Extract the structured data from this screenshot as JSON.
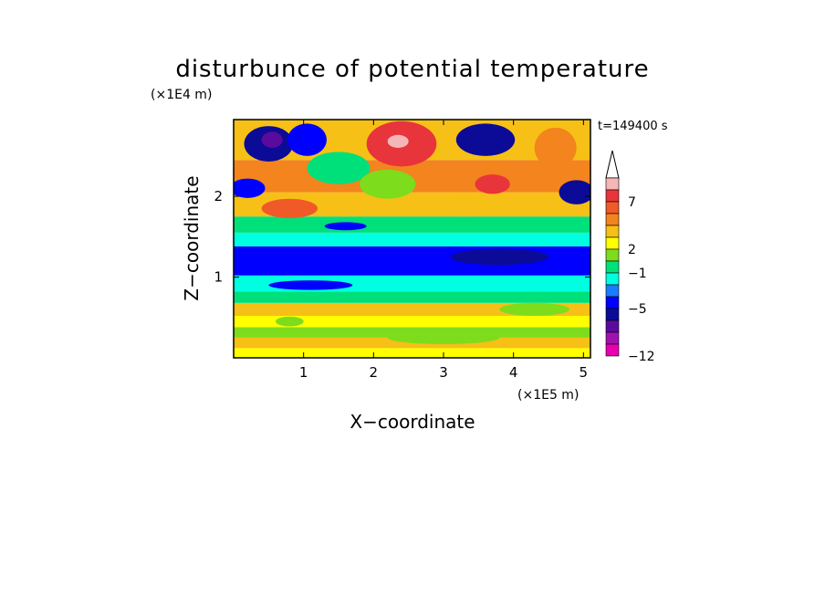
{
  "chart_data": {
    "type": "heatmap",
    "title": "disturbunce of potential temperature",
    "time_label": "t=149400 s",
    "xlabel": "X−coordinate",
    "ylabel": "Z−coordinate",
    "x_unit": "(×1E5 m)",
    "y_unit": "(×1E4 m)",
    "xlim": [
      0,
      5.1
    ],
    "ylim": [
      0,
      2.95
    ],
    "x_ticks": [
      "1",
      "2",
      "3",
      "4",
      "5"
    ],
    "y_ticks": [
      "1",
      "2"
    ],
    "colorbar": {
      "labels": [
        "7",
        "2",
        "−1",
        "−5",
        "−12"
      ],
      "levels_from_top": [
        "#f5b6b8",
        "#e8343b",
        "#f05a28",
        "#f3841e",
        "#f7c016",
        "#ffff00",
        "#7ddc1c",
        "#00e07a",
        "#00ffe0",
        "#1a7cff",
        "#0000ff",
        "#0b0b98",
        "#5a0b9d",
        "#a111b0",
        "#e800b0"
      ],
      "arrow_color": "#ffffff"
    },
    "bands": [
      {
        "z": [
          0.0,
          0.12
        ],
        "level": 5
      },
      {
        "z": [
          0.12,
          0.25
        ],
        "level": 4
      },
      {
        "z": [
          0.25,
          0.38
        ],
        "level": 6
      },
      {
        "z": [
          0.38,
          0.52
        ],
        "level": 5
      },
      {
        "z": [
          0.52,
          0.68
        ],
        "level": 4
      },
      {
        "z": [
          0.68,
          0.82
        ],
        "level": 7
      },
      {
        "z": [
          0.82,
          1.02
        ],
        "level": 8
      },
      {
        "z": [
          1.02,
          1.38
        ],
        "level": 10
      },
      {
        "z": [
          1.38,
          1.55
        ],
        "level": 8
      },
      {
        "z": [
          1.55,
          1.75
        ],
        "level": 7
      },
      {
        "z": [
          1.75,
          2.05
        ],
        "level": 4
      },
      {
        "z": [
          2.05,
          2.45
        ],
        "level": 3
      },
      {
        "z": [
          2.45,
          2.95
        ],
        "level": 4
      }
    ],
    "blobs": [
      {
        "x": 0.5,
        "z": 2.65,
        "rx": 0.35,
        "rz": 0.22,
        "level": 11
      },
      {
        "x": 0.55,
        "z": 2.7,
        "rx": 0.15,
        "rz": 0.1,
        "level": 12
      },
      {
        "x": 1.05,
        "z": 2.7,
        "rx": 0.28,
        "rz": 0.2,
        "level": 10
      },
      {
        "x": 0.2,
        "z": 2.1,
        "rx": 0.25,
        "rz": 0.12,
        "level": 10
      },
      {
        "x": 2.4,
        "z": 2.65,
        "rx": 0.5,
        "rz": 0.28,
        "level": 1
      },
      {
        "x": 2.35,
        "z": 2.68,
        "rx": 0.15,
        "rz": 0.08,
        "level": 0
      },
      {
        "x": 3.6,
        "z": 2.7,
        "rx": 0.42,
        "rz": 0.2,
        "level": 11
      },
      {
        "x": 3.7,
        "z": 2.15,
        "rx": 0.25,
        "rz": 0.12,
        "level": 1
      },
      {
        "x": 4.6,
        "z": 2.6,
        "rx": 0.3,
        "rz": 0.25,
        "level": 3
      },
      {
        "x": 1.5,
        "z": 2.35,
        "rx": 0.45,
        "rz": 0.2,
        "level": 7
      },
      {
        "x": 2.2,
        "z": 2.15,
        "rx": 0.4,
        "rz": 0.18,
        "level": 6
      },
      {
        "x": 0.8,
        "z": 1.85,
        "rx": 0.4,
        "rz": 0.12,
        "level": 2
      },
      {
        "x": 3.3,
        "z": 1.9,
        "rx": 0.5,
        "rz": 0.15,
        "level": 4
      },
      {
        "x": 4.9,
        "z": 2.05,
        "rx": 0.25,
        "rz": 0.15,
        "level": 11
      },
      {
        "x": 1.6,
        "z": 1.63,
        "rx": 0.3,
        "rz": 0.05,
        "level": 10
      },
      {
        "x": 1.1,
        "z": 0.9,
        "rx": 0.6,
        "rz": 0.06,
        "level": 10
      },
      {
        "x": 3.8,
        "z": 1.25,
        "rx": 0.7,
        "rz": 0.1,
        "level": 11
      },
      {
        "x": 0.8,
        "z": 0.45,
        "rx": 0.2,
        "rz": 0.06,
        "level": 6
      },
      {
        "x": 3.0,
        "z": 0.25,
        "rx": 0.8,
        "rz": 0.08,
        "level": 6
      },
      {
        "x": 4.3,
        "z": 0.6,
        "rx": 0.5,
        "rz": 0.08,
        "level": 6
      }
    ]
  }
}
